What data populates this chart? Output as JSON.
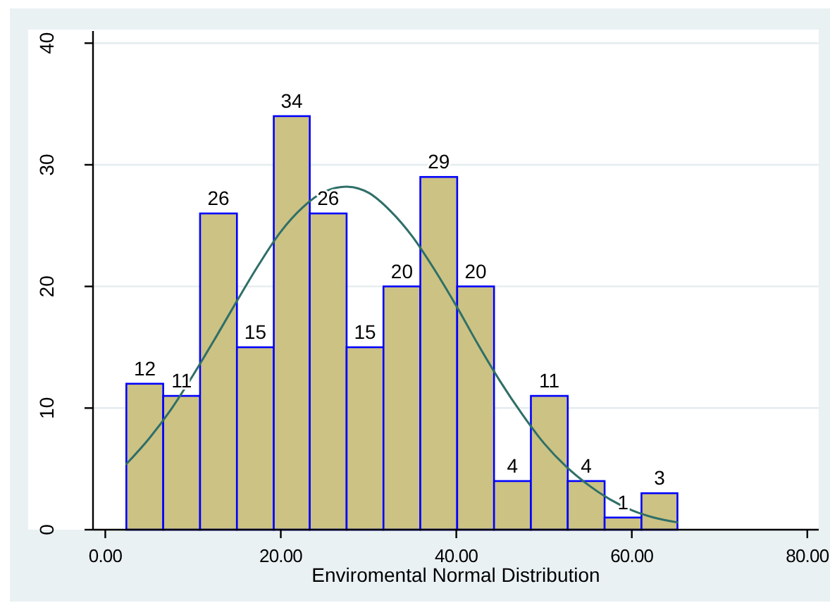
{
  "chart_data": {
    "type": "histogram",
    "xlabel": "Enviromental Normal Distribution",
    "bins": [
      2.4,
      6.6,
      10.8,
      15.0,
      19.2,
      23.3,
      27.5,
      31.7,
      35.9,
      40.1,
      44.3,
      48.5,
      52.7,
      56.9,
      61.1,
      65.2
    ],
    "series": [
      {
        "color": "#ccc283",
        "values": [
          12,
          11,
          26,
          15,
          34,
          26,
          15,
          20,
          29,
          20,
          4,
          11,
          4,
          1,
          3
        ],
        "value_labels": [
          "12",
          "11",
          "26",
          "15",
          "34",
          "26",
          "15",
          "20",
          "29",
          "20",
          "4",
          "11",
          "4",
          "1",
          "3"
        ]
      },
      {
        "type": "line",
        "color": "#2f6f68",
        "x": [
          2.4,
          5,
          7.5,
          10,
          12.5,
          15,
          17.5,
          20,
          22.5,
          25,
          27.5,
          30,
          32.5,
          35,
          37.5,
          40,
          42.5,
          45,
          47.5,
          50,
          52.5,
          55,
          57.5,
          60,
          62.5,
          65.2
        ],
        "values": [
          5.4,
          7.5,
          9.9,
          12.7,
          15.7,
          18.8,
          21.8,
          24.5,
          26.5,
          27.8,
          28.2,
          27.7,
          26.2,
          24.1,
          21.4,
          18.4,
          15.2,
          12.2,
          9.5,
          7.1,
          5.2,
          3.7,
          2.5,
          1.6,
          1.0,
          0.6
        ]
      }
    ],
    "xlim": [
      -1.4,
      81.3
    ],
    "xticks": [
      {
        "value": 0,
        "label": "0.00"
      },
      {
        "value": 20,
        "label": "20.00"
      },
      {
        "value": 40,
        "label": "40.00"
      },
      {
        "value": 60,
        "label": "60.00"
      },
      {
        "value": 80,
        "label": "80.00"
      }
    ],
    "ylim": [
      0,
      41
    ],
    "yticks": [
      0,
      10,
      20,
      30,
      40
    ],
    "grid": "y"
  }
}
